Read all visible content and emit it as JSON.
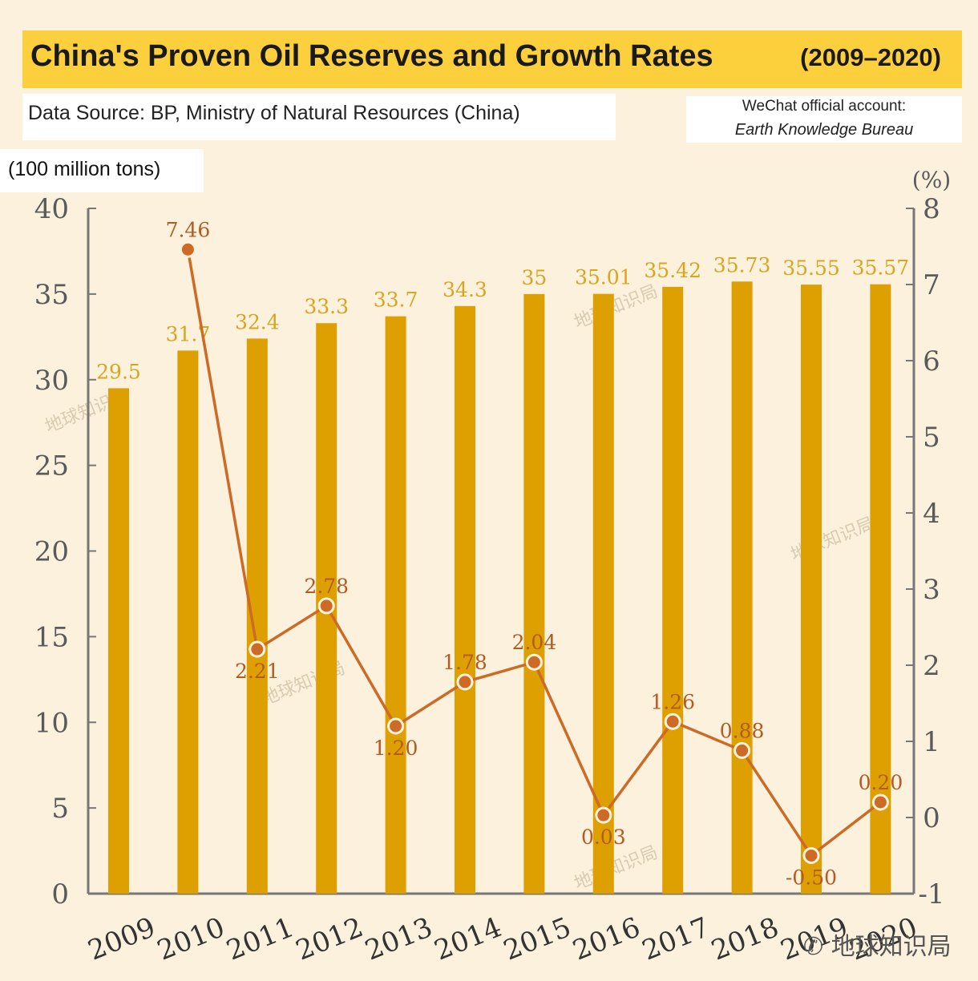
{
  "header": {
    "title": "China's Proven Oil Reserves and Growth Rates",
    "years": "(2009–2020)",
    "source": "Data Source: BP, Ministry of Natural Resources (China)",
    "credit_line1": "WeChat official account:",
    "credit_line2": "Earth Knowledge Bureau",
    "unit_left": "(100 million tons)"
  },
  "watermark": "地球知识局",
  "colors": {
    "bar": "#dea000",
    "line": "#cc6a26",
    "title_bg": "#fcd03c",
    "background": "#fbf1dc",
    "axis": "#777777"
  },
  "chart_data": {
    "type": "bar",
    "categories": [
      "2009",
      "2010",
      "2011",
      "2012",
      "2013",
      "2014",
      "2015",
      "2016",
      "2017",
      "2018",
      "2019",
      "2020"
    ],
    "series": [
      {
        "type": "bar",
        "axis": "left",
        "values": [
          29.5,
          31.7,
          32.4,
          33.3,
          33.7,
          34.3,
          35,
          35.01,
          35.42,
          35.73,
          35.55,
          35.57
        ],
        "labels": [
          "29.5",
          "31.7",
          "32.4",
          "33.3",
          "33.7",
          "34.3",
          "35",
          "35.01",
          "35.42",
          "35.73",
          "35.55",
          "35.57"
        ]
      },
      {
        "type": "line",
        "axis": "right",
        "values": [
          null,
          7.46,
          2.21,
          2.78,
          1.2,
          1.78,
          2.04,
          0.03,
          1.26,
          0.88,
          -0.5,
          0.2
        ],
        "labels": [
          "",
          "7.46",
          "2.21",
          "2.78",
          "1.20",
          "1.78",
          "2.04",
          "0.03",
          "1.26",
          "0.88",
          "-0.50",
          "0.20"
        ]
      }
    ],
    "y_left": {
      "range": [
        0,
        40
      ],
      "ticks": [
        "0",
        "5",
        "10",
        "15",
        "20",
        "25",
        "30",
        "35",
        "40"
      ]
    },
    "y_right": {
      "label": "(%)",
      "range": [
        -1,
        8
      ],
      "ticks": [
        "-1",
        "0",
        "1",
        "2",
        "3",
        "4",
        "5",
        "6",
        "7",
        "8"
      ]
    },
    "grid": false,
    "legend": "none"
  }
}
